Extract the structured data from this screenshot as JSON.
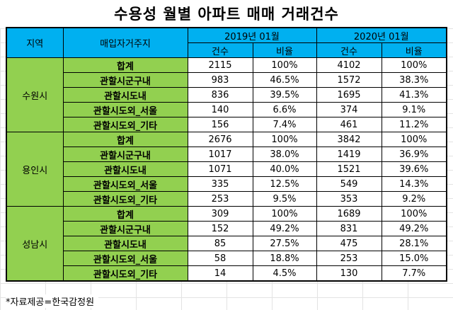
{
  "title": "수용성 월별 아파트 매매 거래건수",
  "header": {
    "region_label": "지역",
    "buyer_label": "매입자거주지",
    "period1": "2019년 01월",
    "period2": "2020년 01월",
    "count_label": "건수",
    "ratio_label": "비율"
  },
  "regions": [
    {
      "name": "수원시",
      "rows": [
        {
          "label": "합계",
          "c1": "2115",
          "r1": "100%",
          "c2": "4102",
          "r2": "100%"
        },
        {
          "label": "관할시군구내",
          "c1": "983",
          "r1": "46.5%",
          "c2": "1572",
          "r2": "38.3%"
        },
        {
          "label": "관할시도내",
          "c1": "836",
          "r1": "39.5%",
          "c2": "1695",
          "r2": "41.3%"
        },
        {
          "label": "관할시도외_서울",
          "c1": "140",
          "r1": "6.6%",
          "c2": "374",
          "r2": "9.1%"
        },
        {
          "label": "관할시도외_기타",
          "c1": "156",
          "r1": "7.4%",
          "c2": "461",
          "r2": "11.2%"
        }
      ]
    },
    {
      "name": "용인시",
      "rows": [
        {
          "label": "합계",
          "c1": "2676",
          "r1": "100%",
          "c2": "3842",
          "r2": "100%"
        },
        {
          "label": "관할시군구내",
          "c1": "1017",
          "r1": "38.0%",
          "c2": "1419",
          "r2": "36.9%"
        },
        {
          "label": "관할시도내",
          "c1": "1071",
          "r1": "40.0%",
          "c2": "1521",
          "r2": "39.6%"
        },
        {
          "label": "관할시도외_서울",
          "c1": "335",
          "r1": "12.5%",
          "c2": "549",
          "r2": "14.3%"
        },
        {
          "label": "관할시도외_기타",
          "c1": "253",
          "r1": "9.5%",
          "c2": "353",
          "r2": "9.2%"
        }
      ]
    },
    {
      "name": "성남시",
      "rows": [
        {
          "label": "합계",
          "c1": "309",
          "r1": "100%",
          "c2": "1689",
          "r2": "100%"
        },
        {
          "label": "관할시군구내",
          "c1": "152",
          "r1": "49.2%",
          "c2": "831",
          "r2": "49.2%"
        },
        {
          "label": "관할시도내",
          "c1": "85",
          "r1": "27.5%",
          "c2": "475",
          "r2": "28.1%"
        },
        {
          "label": "관할시도외_서울",
          "c1": "58",
          "r1": "18.8%",
          "c2": "253",
          "r2": "15.0%"
        },
        {
          "label": "관할시도외_기타",
          "c1": "14",
          "r1": "4.5%",
          "c2": "130",
          "r2": "7.7%"
        }
      ]
    }
  ],
  "footnote": "*자료제공=한국감정원",
  "colors": {
    "header_bg": "#00b0f0",
    "region_bg": "#92d050"
  }
}
